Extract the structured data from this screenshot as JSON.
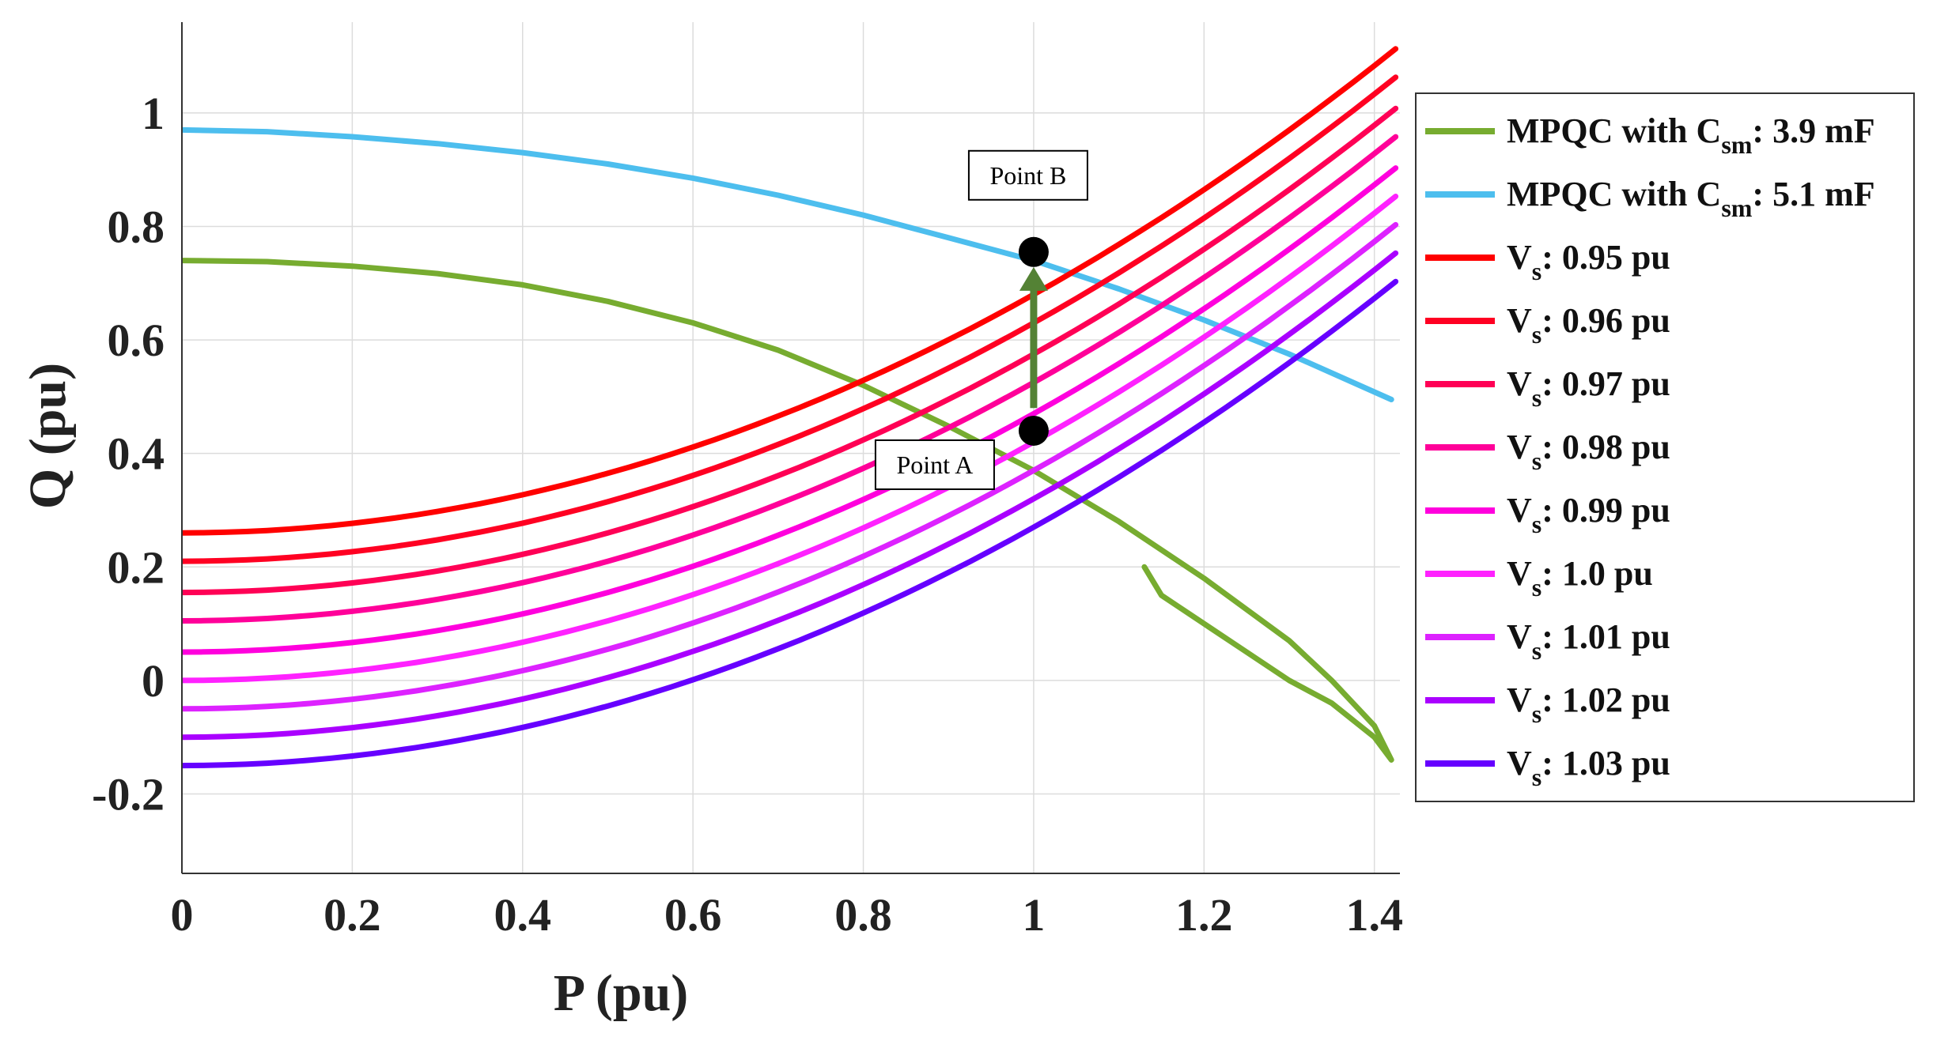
{
  "chart_data": {
    "type": "line",
    "title": "",
    "xlabel": "P (pu)",
    "ylabel": "Q (pu)",
    "xlim": [
      0,
      1.43
    ],
    "ylim": [
      -0.34,
      1.16
    ],
    "grid": true,
    "legend_position": "right-outside",
    "xticks": [
      0,
      0.2,
      0.4,
      0.6,
      0.8,
      1,
      1.2,
      1.4
    ],
    "xtick_labels": [
      "0",
      "0.2",
      "0.4",
      "0.6",
      "0.8",
      "1",
      "1.2",
      "1.4"
    ],
    "yticks": [
      -0.2,
      0,
      0.2,
      0.4,
      0.6,
      0.8,
      1
    ],
    "ytick_labels": [
      "-0.2",
      "0",
      "0.2",
      "0.4",
      "0.6",
      "0.8",
      "1"
    ],
    "series": [
      {
        "name": "MPQC with C_sm: 3.9 mF",
        "label_main": "MPQC with C",
        "label_sub": "sm",
        "label_tail": ": 3.9 mF",
        "color": "#77ac30",
        "x": [
          0,
          0.1,
          0.2,
          0.3,
          0.4,
          0.5,
          0.6,
          0.7,
          0.8,
          0.9,
          1.0,
          1.1,
          1.2,
          1.3,
          1.35,
          1.4,
          1.42,
          1.4,
          1.35,
          1.3,
          1.25,
          1.2,
          1.15,
          1.13
        ],
        "y": [
          0.74,
          0.738,
          0.73,
          0.717,
          0.697,
          0.668,
          0.63,
          0.582,
          0.52,
          0.448,
          0.37,
          0.28,
          0.18,
          0.07,
          0.0,
          -0.08,
          -0.14,
          -0.1,
          -0.04,
          0.0,
          0.05,
          0.1,
          0.15,
          0.2
        ]
      },
      {
        "name": "MPQC with C_sm: 5.1 mF",
        "label_main": "MPQC with C",
        "label_sub": "sm",
        "label_tail": ": 5.1 mF",
        "color": "#4dbeee",
        "x": [
          0,
          0.1,
          0.2,
          0.3,
          0.4,
          0.5,
          0.6,
          0.7,
          0.8,
          0.9,
          1.0,
          1.1,
          1.2,
          1.3,
          1.42
        ],
        "y": [
          0.97,
          0.967,
          0.958,
          0.946,
          0.93,
          0.91,
          0.885,
          0.855,
          0.82,
          0.78,
          0.74,
          0.69,
          0.635,
          0.575,
          0.495
        ]
      },
      {
        "name": "Vs: 0.95 pu",
        "label_main": "V",
        "label_sub": "s",
        "label_tail": ": 0.95 pu",
        "color": "#ff0000",
        "q0": 0.26,
        "coef": 0.42
      },
      {
        "name": "Vs: 0.96 pu",
        "label_main": "V",
        "label_sub": "s",
        "label_tail": ": 0.96 pu",
        "color": "#ff0022",
        "q0": 0.21,
        "coef": 0.42
      },
      {
        "name": "Vs: 0.97 pu",
        "label_main": "V",
        "label_sub": "s",
        "label_tail": ": 0.97 pu",
        "color": "#ff0055",
        "q0": 0.155,
        "coef": 0.42
      },
      {
        "name": "Vs: 0.98 pu",
        "label_main": "V",
        "label_sub": "s",
        "label_tail": ": 0.98 pu",
        "color": "#ff0099",
        "q0": 0.105,
        "coef": 0.42
      },
      {
        "name": "Vs: 0.99 pu",
        "label_main": "V",
        "label_sub": "s",
        "label_tail": ": 0.99 pu",
        "color": "#ff00dd",
        "q0": 0.05,
        "coef": 0.42
      },
      {
        "name": "Vs: 1.0 pu",
        "label_main": "V",
        "label_sub": "s",
        "label_tail": ": 1.0 pu",
        "color": "#ff22ff",
        "q0": 0.0,
        "coef": 0.42
      },
      {
        "name": "Vs: 1.01 pu",
        "label_main": "V",
        "label_sub": "s",
        "label_tail": ": 1.01 pu",
        "color": "#dd22ff",
        "q0": -0.05,
        "coef": 0.42
      },
      {
        "name": "Vs: 1.02 pu",
        "label_main": "V",
        "label_sub": "s",
        "label_tail": ": 1.02 pu",
        "color": "#aa00ff",
        "q0": -0.1,
        "coef": 0.42
      },
      {
        "name": "Vs: 1.03 pu",
        "label_main": "V",
        "label_sub": "s",
        "label_tail": ": 1.03 pu",
        "color": "#6600ff",
        "q0": -0.15,
        "coef": 0.42
      }
    ],
    "annotations": [
      {
        "label": "Point A",
        "x": 1.0,
        "y": 0.44,
        "label_side": "lower-left"
      },
      {
        "label": "Point B",
        "x": 1.0,
        "y": 0.755,
        "label_side": "upper-left"
      }
    ],
    "arrow": {
      "from": [
        1.0,
        0.48
      ],
      "to": [
        1.0,
        0.72
      ],
      "color": "#548235"
    }
  }
}
